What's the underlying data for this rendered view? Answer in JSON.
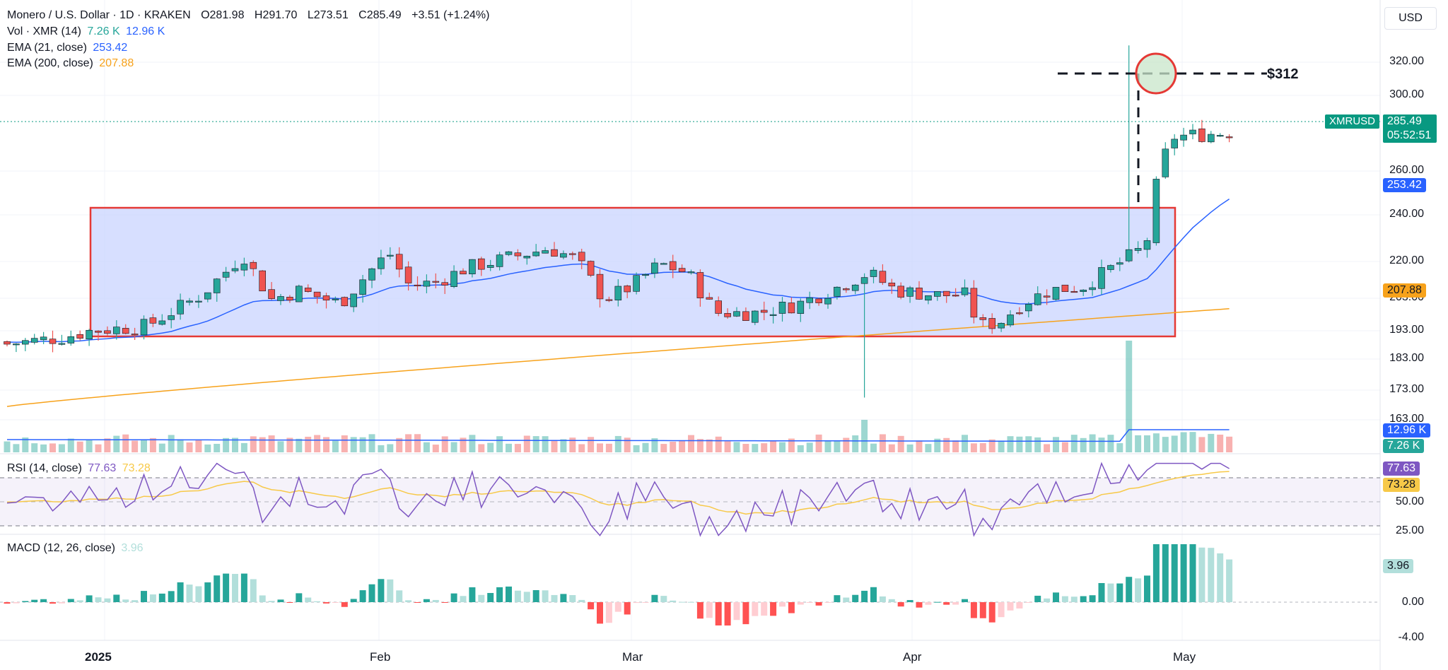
{
  "header": {
    "symbol_title": "Monero / U.S. Dollar · 1D · KRAKEN",
    "ohlc": {
      "open": "O281.98",
      "high": "H291.70",
      "low": "L273.51",
      "close": "C285.49",
      "change": "+3.51 (+1.24%)"
    }
  },
  "indicators": {
    "volume": {
      "label": "Vol · XMR (14)",
      "vol": "7.26 K",
      "ma": "12.96 K"
    },
    "ema21": {
      "label": "EMA (21, close)",
      "value": "253.42"
    },
    "ema200": {
      "label": "EMA (200, close)",
      "value": "207.88"
    },
    "rsi": {
      "label": "RSI (14, close)",
      "value": "77.63",
      "ma": "73.28"
    },
    "macd": {
      "label": "MACD (12, 26, close)",
      "value": "3.96"
    }
  },
  "currency_button": "USD",
  "symbol_tag": "XMRUSD",
  "last_price": {
    "price": "285.49",
    "countdown": "05:52:51"
  },
  "annotation": {
    "target_label": "$312"
  },
  "price_axis": {
    "ticks": [
      "320.00",
      "300.00",
      "260.00",
      "240.00",
      "220.00",
      "203.00",
      "193.00",
      "183.00",
      "173.00",
      "163.00"
    ],
    "badges": {
      "ema21": "253.42",
      "ema200": "207.88",
      "vol_ma": "12.96 K",
      "vol": "7.26 K"
    }
  },
  "rsi_axis": {
    "ticks": [
      "50.00",
      "25.00"
    ],
    "badges": {
      "rsi": "77.63",
      "rsi_ma": "73.28"
    }
  },
  "macd_axis": {
    "ticks": [
      "0.00",
      "-4.00"
    ],
    "badge": "3.96"
  },
  "time_axis": [
    "2025",
    "Feb",
    "Mar",
    "Apr",
    "May"
  ],
  "colors": {
    "up": "#26a69a",
    "down": "#ef5350",
    "ema21": "#2962ff",
    "ema200": "#f7a21b",
    "rsi": "#7e57c2",
    "rsi_ma": "#f7c948",
    "range_fill": "#d4dcff",
    "range_border": "#e53935",
    "macd_up": "#26a69a",
    "macd_up_light": "#b2dfdb",
    "macd_down": "#ff5252",
    "macd_down_light": "#ffcdd2"
  },
  "chart_data": {
    "type": "candlestick",
    "title": "Monero / U.S. Dollar · 1D · KRAKEN",
    "ylim": [
      158,
      328
    ],
    "series": [
      {
        "name": "XMRUSD",
        "last_ohlc": [
          281.98,
          291.7,
          273.51,
          285.49
        ]
      },
      {
        "name": "EMA (21, close)",
        "last": 253.42
      },
      {
        "name": "EMA (200, close)",
        "last": 207.88
      }
    ],
    "annotations": {
      "target_price": 312,
      "range_box": {
        "low": 191,
        "high": 242
      }
    },
    "rsi": {
      "last": 77.63,
      "ma": 73.28
    },
    "macd": {
      "last": 3.96
    }
  }
}
